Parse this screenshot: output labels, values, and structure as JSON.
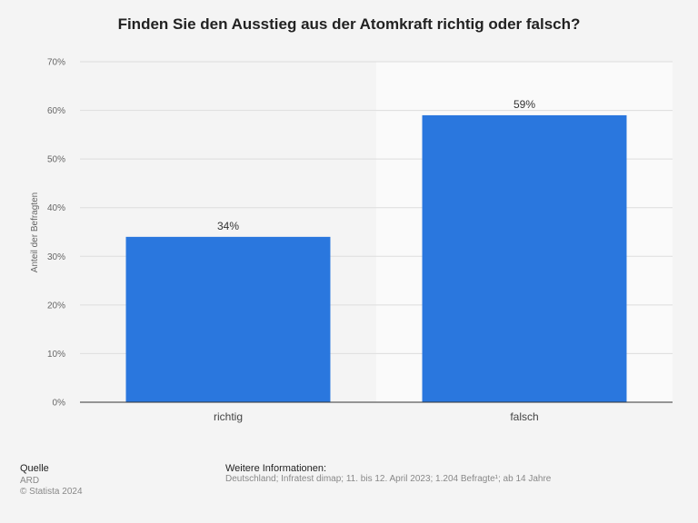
{
  "chart_data": {
    "type": "bar",
    "title": "Finden Sie den Ausstieg aus der Atomkraft richtig oder falsch?",
    "ylabel": "Anteil der Befragten",
    "xlabel": "",
    "categories": [
      "richtig",
      "falsch"
    ],
    "values": [
      34,
      59
    ],
    "value_labels": [
      "34%",
      "59%"
    ],
    "ylim": [
      0,
      70
    ],
    "yticks": [
      0,
      10,
      20,
      30,
      40,
      50,
      60,
      70
    ],
    "ytick_labels": [
      "0%",
      "10%",
      "20%",
      "30%",
      "40%",
      "50%",
      "60%",
      "70%"
    ],
    "grid": true,
    "bar_color": "#2a77de"
  },
  "footer": {
    "source_label": "Quelle",
    "source_lines": [
      "ARD",
      "© Statista 2024"
    ],
    "info_label": "Weitere Informationen:",
    "info_text": "Deutschland; Infratest dimap; 11. bis 12. April 2023; 1.204 Befragte¹; ab 14 Jahre"
  }
}
